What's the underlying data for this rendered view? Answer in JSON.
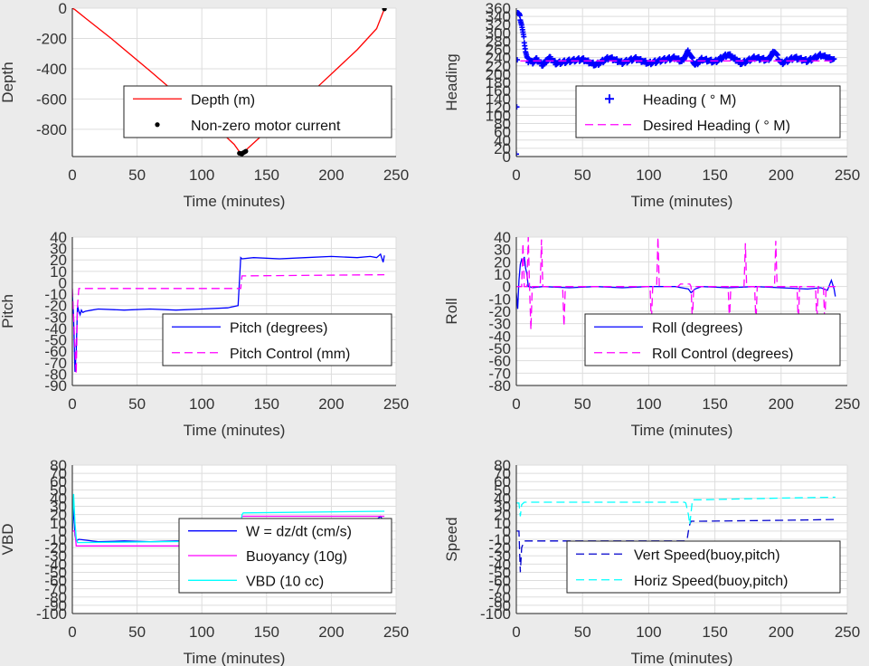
{
  "chart_data": [
    {
      "id": "depth",
      "type": "line",
      "xlabel": "Time (minutes)",
      "ylabel": "Depth",
      "xlim": [
        0,
        250
      ],
      "ylim": [
        -980,
        0
      ],
      "xticks": [
        0,
        50,
        100,
        150,
        200,
        250
      ],
      "yticks": [
        0,
        -200,
        -400,
        -600,
        -800
      ],
      "grid": true,
      "legend_position": "lower-right",
      "series": [
        {
          "name": "Depth (m)",
          "style": "line",
          "color": "#ff0000",
          "x": [
            0,
            2,
            10,
            30,
            60,
            90,
            110,
            125,
            130,
            135,
            160,
            190,
            220,
            235,
            241
          ],
          "y": [
            0,
            -10,
            -65,
            -200,
            -415,
            -635,
            -780,
            -900,
            -960,
            -930,
            -735,
            -515,
            -275,
            -135,
            -5
          ]
        },
        {
          "name": "Non-zero motor current",
          "style": "dots",
          "color": "#000000",
          "x": [
            129,
            130,
            131,
            132,
            133,
            134,
            241
          ],
          "y": [
            -958,
            -960,
            -962,
            -955,
            -950,
            -945,
            -5
          ]
        }
      ]
    },
    {
      "id": "heading",
      "type": "line",
      "xlabel": "Time (minutes)",
      "ylabel": "Heading",
      "xlim": [
        0,
        250
      ],
      "ylim": [
        0,
        360
      ],
      "xticks": [
        0,
        50,
        100,
        150,
        200,
        250
      ],
      "yticks": [
        0,
        20,
        40,
        60,
        80,
        100,
        120,
        140,
        160,
        180,
        200,
        220,
        240,
        260,
        280,
        300,
        320,
        340,
        360
      ],
      "grid": true,
      "legend_position": "lower-right",
      "series": [
        {
          "name": "Heading (   ° M)",
          "style": "plus",
          "color": "#0000ff",
          "x": [
            0,
            1,
            2,
            3,
            4,
            5,
            6,
            7,
            8,
            9,
            10,
            12,
            15,
            20,
            25,
            30,
            40,
            50,
            60,
            70,
            80,
            90,
            100,
            110,
            120,
            125,
            130,
            135,
            140,
            150,
            160,
            170,
            180,
            190,
            195,
            200,
            210,
            220,
            230,
            240
          ],
          "y": [
            10,
            350,
            345,
            335,
            320,
            300,
            280,
            255,
            240,
            232,
            235,
            228,
            236,
            222,
            240,
            226,
            232,
            236,
            222,
            240,
            228,
            238,
            226,
            234,
            240,
            230,
            256,
            222,
            236,
            230,
            248,
            226,
            240,
            234,
            256,
            226,
            240,
            232,
            246,
            234
          ]
        },
        {
          "name": "Desired Heading (     ° M)",
          "style": "dash",
          "color": "#ff00ff",
          "x": [
            3,
            240
          ],
          "y": [
            232,
            232
          ]
        }
      ]
    },
    {
      "id": "pitch",
      "type": "line",
      "xlabel": "Time (minutes)",
      "ylabel": "Pitch",
      "xlim": [
        0,
        250
      ],
      "ylim": [
        -90,
        40
      ],
      "xticks": [
        0,
        50,
        100,
        150,
        200,
        250
      ],
      "yticks": [
        40,
        30,
        20,
        10,
        0,
        -10,
        -20,
        -30,
        -40,
        -50,
        -60,
        -70,
        -80,
        -90
      ],
      "grid": true,
      "legend_position": "lower-right",
      "series": [
        {
          "name": "Pitch (degrees)",
          "style": "line",
          "color": "#0000ff",
          "x": [
            0,
            1,
            2,
            3,
            4,
            5,
            6,
            7,
            8,
            10,
            15,
            20,
            40,
            60,
            80,
            100,
            120,
            128,
            129,
            130,
            131,
            140,
            160,
            180,
            200,
            220,
            230,
            235,
            238,
            240,
            241
          ],
          "y": [
            -10,
            -30,
            -78,
            -60,
            -20,
            -25,
            -28,
            -24,
            -26,
            -25,
            -24,
            -23,
            -24,
            -23,
            -24,
            -23,
            -22,
            -20,
            0,
            22,
            21,
            22,
            21,
            22,
            23,
            22,
            23,
            22,
            25,
            18,
            24
          ]
        },
        {
          "name": "Pitch Control (mm)",
          "style": "dash",
          "color": "#ff00ff",
          "x": [
            0,
            3,
            4,
            5,
            128,
            130,
            131,
            241
          ],
          "y": [
            -5,
            -80,
            -20,
            -5,
            -5,
            -5,
            6,
            7
          ]
        }
      ]
    },
    {
      "id": "roll",
      "type": "line",
      "xlabel": "Time (minutes)",
      "ylabel": "Roll",
      "xlim": [
        0,
        250
      ],
      "ylim": [
        -80,
        40
      ],
      "xticks": [
        0,
        50,
        100,
        150,
        200,
        250
      ],
      "yticks": [
        40,
        30,
        20,
        10,
        0,
        -10,
        -20,
        -30,
        -40,
        -50,
        -60,
        -70,
        -80
      ],
      "grid": true,
      "legend_position": "lower-right",
      "series": [
        {
          "name": "Roll (degrees)",
          "style": "line",
          "color": "#0000ff",
          "x": [
            0,
            1,
            2,
            3,
            4,
            5,
            6,
            7,
            8,
            9,
            10,
            12,
            20,
            40,
            60,
            80,
            100,
            120,
            130,
            132,
            135,
            140,
            160,
            180,
            200,
            220,
            230,
            235,
            238,
            240,
            241
          ],
          "y": [
            -5,
            -18,
            5,
            18,
            22,
            20,
            24,
            15,
            10,
            0,
            0,
            -1,
            0,
            -1,
            0,
            -1,
            0,
            0,
            -2,
            -5,
            -2,
            0,
            -1,
            0,
            -1,
            -2,
            -1,
            -3,
            5,
            -2,
            -8
          ]
        },
        {
          "name": "Roll Control (degrees)",
          "style": "dash",
          "color": "#ff00ff",
          "x": [
            0,
            4,
            5,
            6,
            7,
            8,
            9,
            10,
            11,
            12,
            18,
            19,
            20,
            21,
            35,
            36,
            37,
            101,
            102,
            103,
            106,
            107,
            108,
            122,
            124,
            131,
            132,
            133,
            134,
            150,
            160,
            161,
            162,
            172,
            173,
            174,
            180,
            181,
            182,
            195,
            196,
            197,
            212,
            213,
            214,
            226,
            227,
            228,
            232,
            233,
            234,
            241
          ],
          "y": [
            0,
            0,
            35,
            0,
            0,
            0,
            40,
            0,
            -35,
            0,
            0,
            38,
            0,
            0,
            0,
            -32,
            0,
            0,
            -30,
            0,
            0,
            40,
            0,
            0,
            2,
            2,
            0,
            -28,
            0,
            0,
            0,
            -28,
            0,
            0,
            35,
            0,
            0,
            -30,
            0,
            0,
            37,
            0,
            0,
            -30,
            0,
            0,
            -30,
            0,
            0,
            -30,
            0,
            0
          ]
        }
      ]
    },
    {
      "id": "vbd",
      "type": "line",
      "xlabel": "Time (minutes)",
      "ylabel": "VBD",
      "xlim": [
        0,
        250
      ],
      "ylim": [
        -100,
        80
      ],
      "xticks": [
        0,
        50,
        100,
        150,
        200,
        250
      ],
      "yticks": [
        80,
        70,
        60,
        50,
        40,
        30,
        20,
        10,
        0,
        -10,
        -20,
        -30,
        -40,
        -50,
        -60,
        -70,
        -80,
        -90,
        -100
      ],
      "grid": true,
      "legend_position": "lower-right",
      "series": [
        {
          "name": "W = dz/dt (cm/s)",
          "style": "line",
          "color": "#0000ff",
          "x": [
            0,
            1,
            2,
            3,
            5,
            10,
            20,
            40,
            60,
            80,
            100,
            120,
            128,
            130,
            132,
            140,
            160,
            180,
            200,
            220,
            235,
            238,
            241
          ],
          "y": [
            0,
            30,
            -5,
            -12,
            -10,
            -11,
            -13,
            -12,
            -13,
            -12,
            -12,
            -10,
            -8,
            0,
            14,
            12,
            13,
            12,
            13,
            12,
            14,
            18,
            10
          ]
        },
        {
          "name": "Buoyancy (10g)",
          "style": "line",
          "color": "#ff00ff",
          "x": [
            0,
            2,
            3,
            6,
            128,
            130,
            131,
            241
          ],
          "y": [
            0,
            0,
            -18,
            -18,
            -18,
            0,
            18,
            18
          ]
        },
        {
          "name": "VBD (10 cc)",
          "style": "line",
          "color": "#00ffff",
          "x": [
            0,
            1,
            2,
            3,
            4,
            128,
            130,
            131,
            132,
            241
          ],
          "y": [
            5,
            45,
            10,
            -8,
            -14,
            -12,
            0,
            20,
            22,
            24
          ]
        }
      ]
    },
    {
      "id": "speed",
      "type": "line",
      "xlabel": "Time (minutes)",
      "ylabel": "Speed",
      "xlim": [
        0,
        250
      ],
      "ylim": [
        -100,
        80
      ],
      "xticks": [
        0,
        50,
        100,
        150,
        200,
        250
      ],
      "yticks": [
        80,
        70,
        60,
        50,
        40,
        30,
        20,
        10,
        0,
        -10,
        -20,
        -30,
        -40,
        -50,
        -60,
        -70,
        -80,
        -90,
        -100
      ],
      "grid": true,
      "legend_position": "lower-right",
      "series": [
        {
          "name": "Vert Speed(buoy,pitch)",
          "style": "dash",
          "color": "#0000cc",
          "x": [
            0,
            2,
            3,
            4,
            6,
            128,
            129,
            130,
            131,
            132,
            140,
            200,
            241
          ],
          "y": [
            0,
            0,
            -50,
            -20,
            -12,
            -12,
            -10,
            0,
            8,
            12,
            12,
            13,
            14
          ]
        },
        {
          "name": "Horiz Speed(buoy,pitch)",
          "style": "dash",
          "color": "#00ffff",
          "x": [
            0,
            2,
            3,
            4,
            6,
            127,
            128,
            130,
            131,
            132,
            133,
            140,
            200,
            241
          ],
          "y": [
            34,
            34,
            18,
            32,
            35,
            35,
            34,
            20,
            8,
            22,
            38,
            38,
            40,
            41
          ]
        }
      ]
    }
  ]
}
